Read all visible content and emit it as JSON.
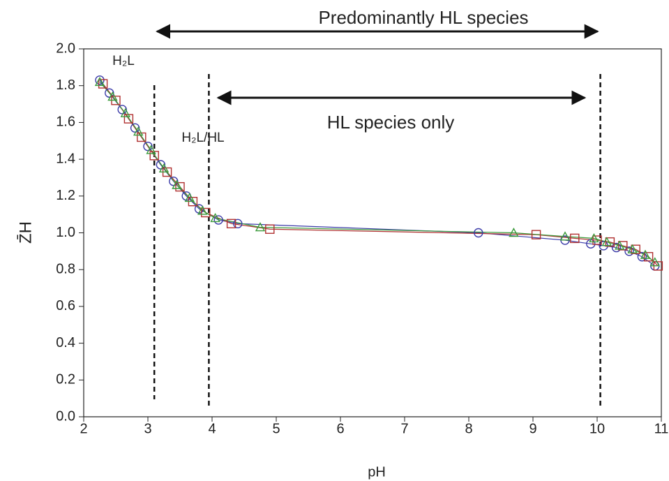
{
  "chart_data": {
    "type": "scatter",
    "x_label": "pH",
    "y_label": "Z̄H",
    "xlim": [
      2,
      11
    ],
    "xticks": [
      2,
      3,
      4,
      5,
      6,
      7,
      8,
      9,
      10,
      11
    ],
    "ylim": [
      0,
      2
    ],
    "yticks": [
      {
        "value": 0,
        "label": "0.0"
      },
      0.2,
      0.4,
      0.6,
      0.8,
      {
        "value": 1,
        "label": "1.0"
      },
      1.2,
      1.4,
      1.6,
      1.8,
      {
        "value": 2,
        "label": "2.0"
      }
    ],
    "grid": false,
    "vlines": [
      3.1,
      3.95,
      10.05
    ],
    "arrows": [
      {
        "text": "Predominantly HL species",
        "x": [
          3.1,
          10.05
        ]
      },
      {
        "text": "HL species only",
        "x": [
          4.05,
          9.85
        ]
      }
    ],
    "labels": [
      "H₂L",
      "H₂L/HL"
    ],
    "series": [
      {
        "color": "#3a3aa8",
        "marker": "circle",
        "x": [
          2.25,
          2.4,
          2.6,
          2.8,
          3.0,
          3.2,
          3.4,
          3.6,
          3.8,
          4.1,
          4.4,
          8.15,
          9.5,
          9.9,
          10.1,
          10.3,
          10.5,
          10.7,
          10.9
        ],
        "values": [
          1.83,
          1.76,
          1.67,
          1.57,
          1.47,
          1.37,
          1.28,
          1.2,
          1.13,
          1.07,
          1.05,
          1.0,
          0.96,
          0.94,
          0.93,
          0.92,
          0.9,
          0.87,
          0.82
        ]
      },
      {
        "color": "#b03030",
        "marker": "square",
        "x": [
          2.3,
          2.5,
          2.7,
          2.9,
          3.1,
          3.3,
          3.5,
          3.7,
          3.9,
          4.3,
          4.9,
          9.05,
          9.65,
          10.0,
          10.2,
          10.4,
          10.6,
          10.8,
          10.95
        ],
        "values": [
          1.81,
          1.72,
          1.62,
          1.52,
          1.42,
          1.33,
          1.25,
          1.17,
          1.11,
          1.05,
          1.02,
          0.99,
          0.97,
          0.96,
          0.95,
          0.93,
          0.91,
          0.87,
          0.82
        ]
      },
      {
        "color": "#3a9a3a",
        "marker": "triangle",
        "x": [
          2.25,
          2.45,
          2.65,
          2.85,
          3.05,
          3.25,
          3.45,
          3.65,
          3.85,
          4.05,
          4.75,
          8.7,
          9.5,
          9.95,
          10.15,
          10.35,
          10.55,
          10.75,
          10.9
        ],
        "values": [
          1.82,
          1.74,
          1.65,
          1.55,
          1.45,
          1.35,
          1.26,
          1.19,
          1.12,
          1.08,
          1.03,
          1.0,
          0.98,
          0.97,
          0.95,
          0.93,
          0.91,
          0.88,
          0.84
        ]
      }
    ]
  }
}
